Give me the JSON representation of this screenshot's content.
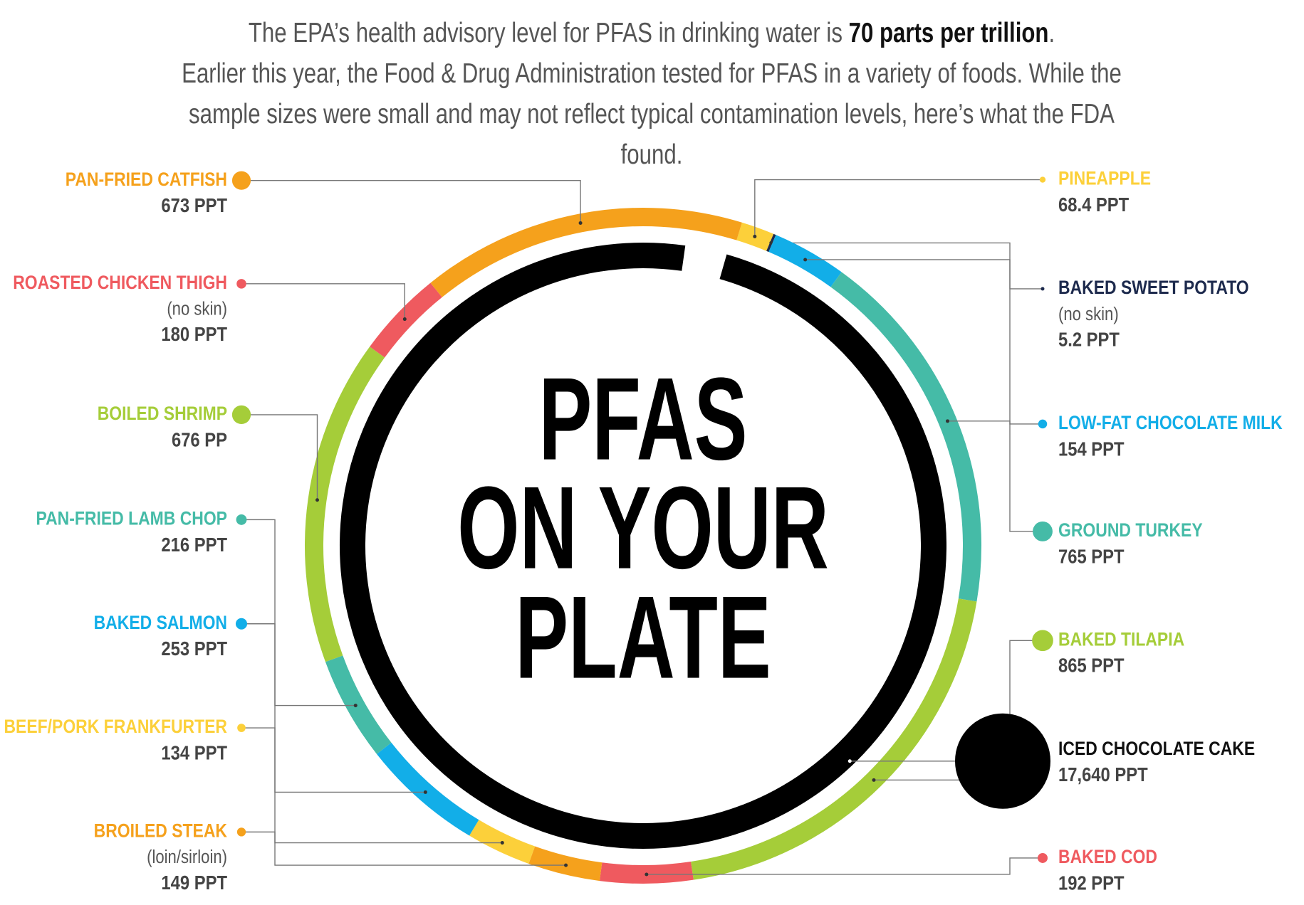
{
  "chart_data": {
    "type": "donut",
    "intro_lead": "The EPA’s health advisory level for PFAS in drinking water is",
    "intro_highlight": "70 parts per trillion",
    "intro_end": ".",
    "subtitle": "Earlier this year, the Food & Drug Administration tested for PFAS in a variety of foods. While the sample sizes were small and may not reflect typical contamination levels, here’s what the FDA found.",
    "title": [
      "PFAS",
      "ON YOUR",
      "PLATE"
    ],
    "series": [
      {
        "name": "PINEAPPLE",
        "value": 68.4,
        "value_label": "68.4 PPT",
        "color": "#fcd03a"
      },
      {
        "name": "BAKED SWEET POTATO",
        "note": "(no skin)",
        "value": 5.2,
        "value_label": "5.2 PPT",
        "color": "#1d2a4d"
      },
      {
        "name": "LOW-FAT CHOCOLATE MILK",
        "value": 154,
        "value_label": "154 PPT",
        "color": "#12aee8"
      },
      {
        "name": "GROUND TURKEY",
        "value": 765,
        "value_label": "765 PPT",
        "color": "#45bba7"
      },
      {
        "name": "BAKED TILAPIA",
        "value": 865,
        "value_label": "865 PPT",
        "color": "#a5cd39"
      },
      {
        "name": "BAKED COD",
        "value": 192,
        "value_label": "192 PPT",
        "color": "#ef5a5f"
      },
      {
        "name": "BROILED STEAK",
        "note": "(loin/sirloin)",
        "value": 149,
        "value_label": "149 PPT",
        "color": "#f5a11c"
      },
      {
        "name": "BEEF/PORK FRANKFURTER",
        "value": 134,
        "value_label": "134 PPT",
        "color": "#fcd03a"
      },
      {
        "name": "BAKED SALMON",
        "value": 253,
        "value_label": "253 PPT",
        "color": "#12aee8"
      },
      {
        "name": "PAN-FRIED LAMB CHOP",
        "value": 216,
        "value_label": "216 PPT",
        "color": "#45bba7"
      },
      {
        "name": "BOILED SHRIMP",
        "value": 676,
        "value_label": "676 PP",
        "color": "#a5cd39"
      },
      {
        "name": "ROASTED CHICKEN THIGH",
        "note": "(no skin)",
        "value": 180,
        "value_label": "180 PPT",
        "color": "#ef5a5f"
      },
      {
        "name": "PAN-FRIED CATFISH",
        "value": 673,
        "value_label": "673 PPT",
        "color": "#f5a11c"
      }
    ],
    "inner": {
      "name": "ICED CHOCOLATE CAKE",
      "value": 17640,
      "value_label": "17,640 PPT",
      "color": "#000000"
    }
  }
}
